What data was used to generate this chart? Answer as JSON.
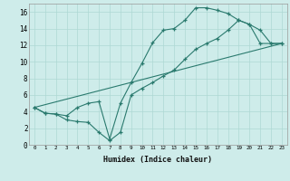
{
  "xlabel": "Humidex (Indice chaleur)",
  "xlim": [
    -0.5,
    23.5
  ],
  "ylim": [
    0,
    17
  ],
  "xticks": [
    0,
    1,
    2,
    3,
    4,
    5,
    6,
    7,
    8,
    9,
    10,
    11,
    12,
    13,
    14,
    15,
    16,
    17,
    18,
    19,
    20,
    21,
    22,
    23
  ],
  "yticks": [
    0,
    2,
    4,
    6,
    8,
    10,
    12,
    14,
    16
  ],
  "bg_color": "#ceecea",
  "line_color": "#2a7a6e",
  "grid_color": "#aed8d4",
  "line1_x": [
    0,
    1,
    2,
    3,
    4,
    5,
    6,
    7,
    8,
    9,
    10,
    11,
    12,
    13,
    14,
    15,
    16,
    17,
    18,
    19,
    20,
    21,
    22,
    23
  ],
  "line1_y": [
    4.5,
    3.8,
    3.7,
    3.5,
    4.5,
    5.0,
    5.2,
    0.7,
    5.0,
    7.5,
    9.8,
    12.3,
    13.8,
    14.0,
    15.0,
    16.5,
    16.5,
    16.2,
    15.8,
    15.0,
    14.5,
    13.8,
    12.2,
    12.2
  ],
  "line2_x": [
    0,
    1,
    2,
    3,
    4,
    5,
    6,
    7,
    8,
    9,
    10,
    11,
    12,
    13,
    14,
    15,
    16,
    17,
    18,
    19,
    20,
    21,
    22,
    23
  ],
  "line2_y": [
    4.5,
    3.8,
    3.7,
    3.0,
    2.8,
    2.7,
    1.5,
    0.5,
    1.5,
    6.0,
    6.8,
    7.5,
    8.3,
    9.0,
    10.3,
    11.5,
    12.2,
    12.8,
    13.8,
    15.0,
    14.5,
    12.2,
    12.2,
    12.2
  ],
  "line3_x": [
    0,
    23
  ],
  "line3_y": [
    4.5,
    12.2
  ]
}
